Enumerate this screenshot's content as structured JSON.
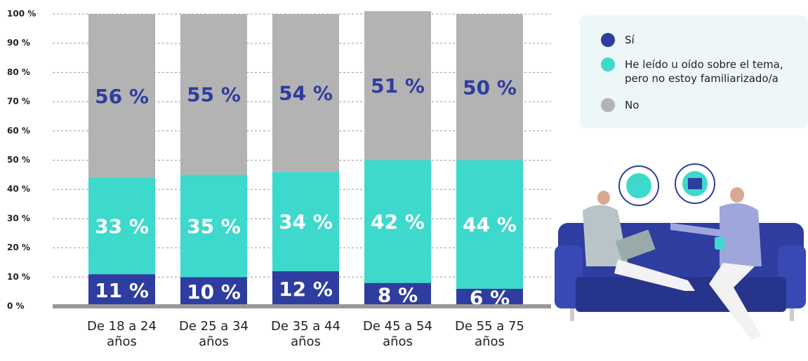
{
  "chart_data": {
    "type": "stacked_bar",
    "categories": [
      "De 18 a 24 años",
      "De 25 a 34 años",
      "De 35 a 44 años",
      "De 45 a 54 años",
      "De 55 a 75 años"
    ],
    "series": [
      {
        "name": "Sí",
        "color": "#2e3d9f",
        "values": [
          11,
          10,
          12,
          8,
          6
        ],
        "value_labels": [
          "11 %",
          "10 %",
          "12 %",
          "8 %",
          "6 %"
        ]
      },
      {
        "name": "He leído u oído sobre el tema, pero no estoy familiarizado/a",
        "color": "#3dd9cc",
        "values": [
          33,
          35,
          34,
          42,
          44
        ],
        "value_labels": [
          "33 %",
          "35 %",
          "34 %",
          "42 %",
          "44 %"
        ]
      },
      {
        "name": "No",
        "color": "#b3b3b3",
        "values": [
          56,
          55,
          54,
          51,
          50
        ],
        "value_labels": [
          "56 %",
          "55 %",
          "54 %",
          "51 %",
          "50 %"
        ]
      }
    ],
    "ylim": [
      0,
      100
    ],
    "yticks": [
      {
        "value": 0,
        "label": "0 %"
      },
      {
        "value": 10,
        "label": "10 %"
      },
      {
        "value": 20,
        "label": "20 %"
      },
      {
        "value": 30,
        "label": "30 %"
      },
      {
        "value": 40,
        "label": "40 %"
      },
      {
        "value": 50,
        "label": "50 %"
      },
      {
        "value": 60,
        "label": "60 %"
      },
      {
        "value": 70,
        "label": "70 %"
      },
      {
        "value": 80,
        "label": "80 %"
      },
      {
        "value": 90,
        "label": "90 %"
      },
      {
        "value": 100,
        "label": "100 %"
      }
    ],
    "grid": true,
    "legend": "top-right"
  }
}
